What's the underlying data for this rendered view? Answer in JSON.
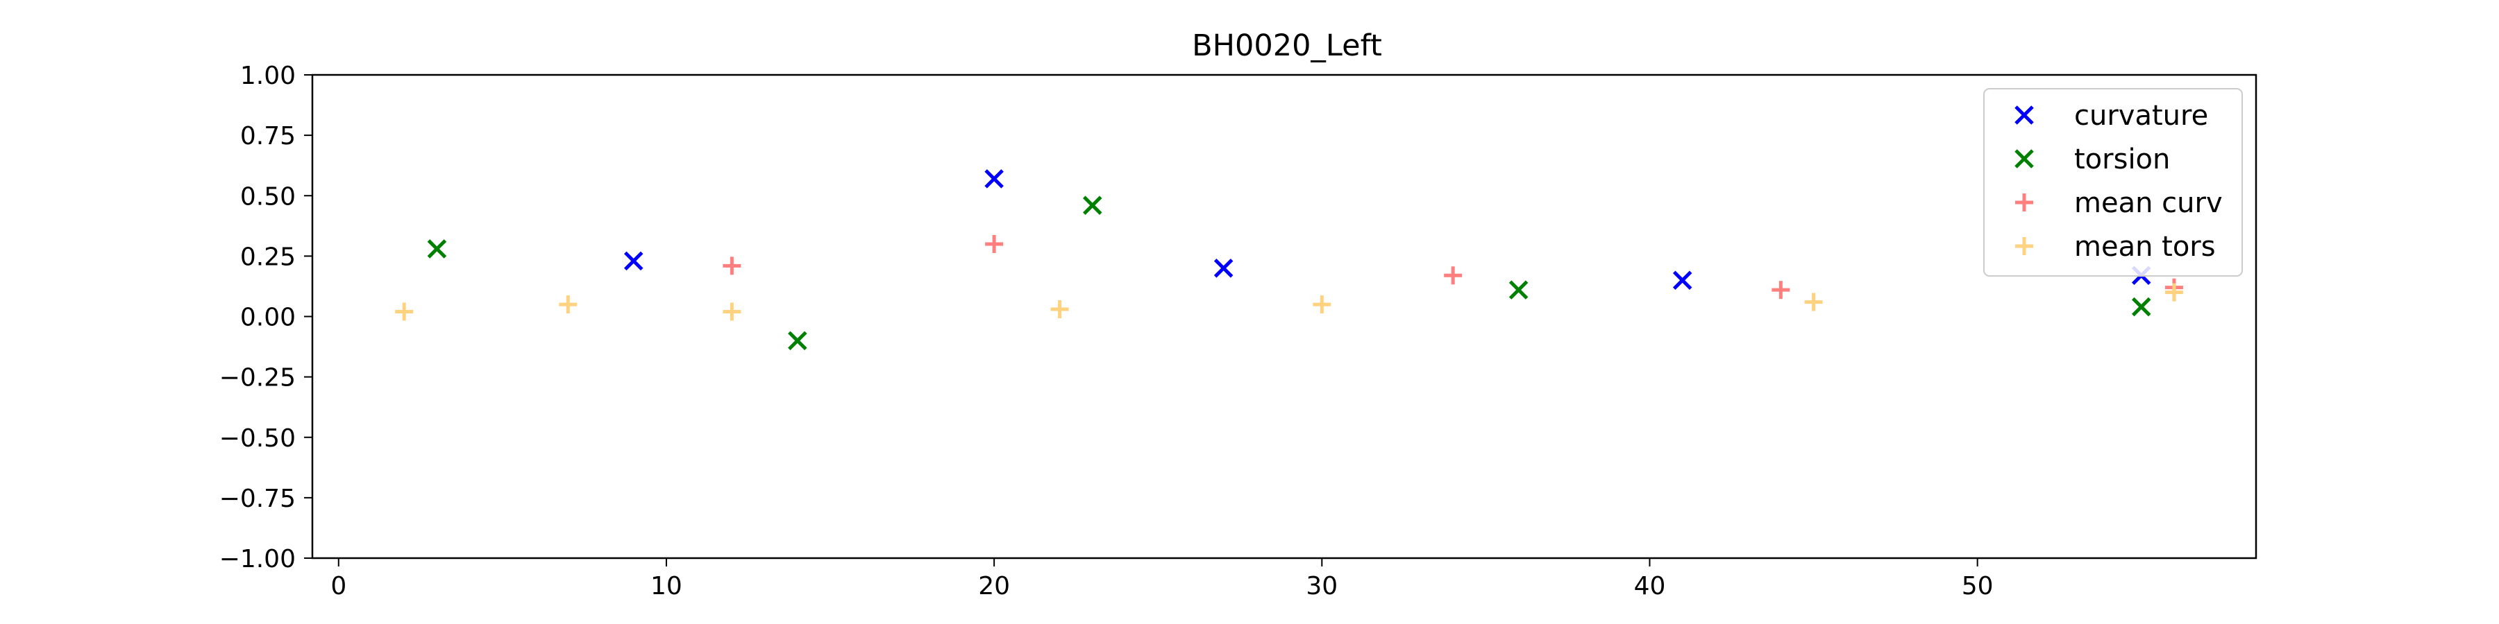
{
  "chart_data": {
    "type": "scatter",
    "title": "BH0020_Left",
    "xlabel": "",
    "ylabel": "",
    "xlim": [
      -0.8,
      58.5
    ],
    "ylim": [
      -1.0,
      1.0
    ],
    "xticks": [
      0,
      10,
      20,
      30,
      40,
      50
    ],
    "yticks": [
      -1.0,
      -0.75,
      -0.5,
      -0.25,
      0.0,
      0.25,
      0.5,
      0.75,
      1.0
    ],
    "ytick_labels": [
      "−1.00",
      "−0.75",
      "−0.50",
      "−0.25",
      "0.00",
      "0.25",
      "0.50",
      "0.75",
      "1.00"
    ],
    "grid": false,
    "legend_position": "top-right",
    "series": [
      {
        "name": "curvature",
        "marker": "x",
        "color": "#0000ff",
        "points": [
          [
            9,
            0.23
          ],
          [
            20,
            0.57
          ],
          [
            27,
            0.2
          ],
          [
            41,
            0.15
          ],
          [
            55,
            0.17
          ]
        ]
      },
      {
        "name": "torsion",
        "marker": "x",
        "color": "#008000",
        "points": [
          [
            3,
            0.28
          ],
          [
            14,
            -0.1
          ],
          [
            23,
            0.46
          ],
          [
            36,
            0.11
          ],
          [
            55,
            0.04
          ]
        ]
      },
      {
        "name": "mean curv",
        "marker": "+",
        "color": "#ff7f7f",
        "points": [
          [
            12,
            0.21
          ],
          [
            20,
            0.3
          ],
          [
            34,
            0.17
          ],
          [
            44,
            0.11
          ],
          [
            56,
            0.12
          ]
        ]
      },
      {
        "name": "mean tors",
        "marker": "+",
        "color": "#ffd27f",
        "points": [
          [
            2,
            0.02
          ],
          [
            7,
            0.05
          ],
          [
            12,
            0.02
          ],
          [
            22,
            0.03
          ],
          [
            30,
            0.05
          ],
          [
            45,
            0.06
          ],
          [
            56,
            0.1
          ]
        ]
      }
    ]
  }
}
